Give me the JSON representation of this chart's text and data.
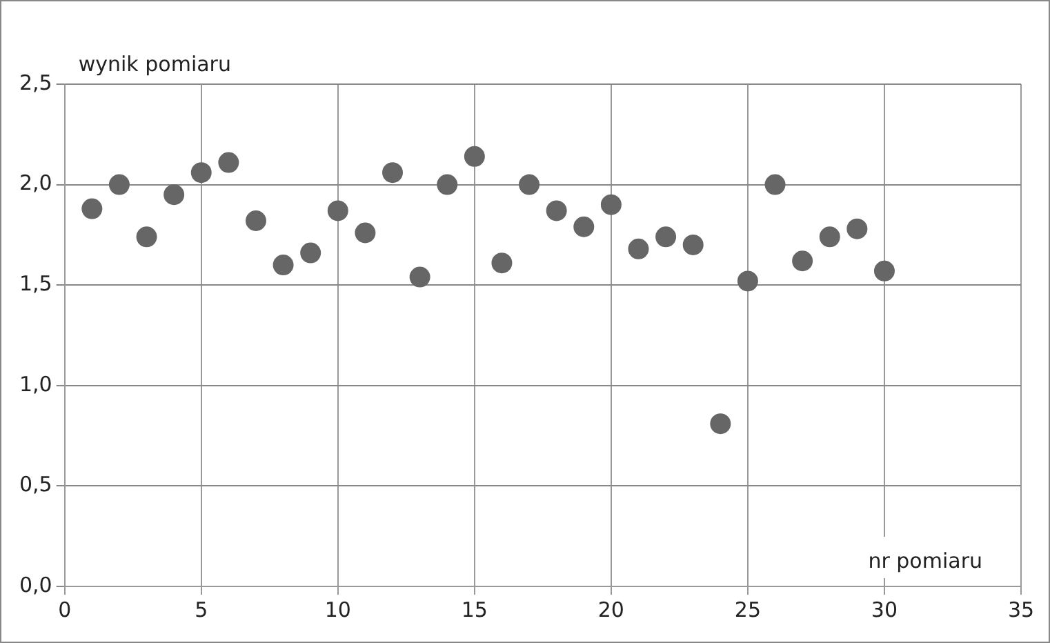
{
  "chart_data": {
    "type": "scatter",
    "xlabel": "nr pomiaru",
    "ylabel": "wynik pomiaru",
    "x": [
      1,
      2,
      3,
      4,
      5,
      6,
      7,
      8,
      9,
      10,
      11,
      12,
      13,
      14,
      15,
      16,
      17,
      18,
      19,
      20,
      21,
      22,
      23,
      24,
      25,
      26,
      27,
      28,
      29,
      30
    ],
    "series": [
      {
        "color": "#666666",
        "values": [
          1.88,
          2.0,
          1.74,
          1.95,
          2.06,
          2.11,
          1.82,
          1.6,
          1.66,
          1.87,
          1.76,
          2.06,
          1.54,
          2.0,
          2.14,
          1.61,
          2.0,
          1.87,
          1.79,
          1.9,
          1.68,
          1.74,
          1.7,
          0.81,
          1.52,
          2.0,
          1.62,
          1.74,
          1.78,
          1.57
        ]
      }
    ],
    "xlim": [
      0,
      35
    ],
    "xticks": [
      0,
      5,
      10,
      15,
      20,
      25,
      30,
      35
    ],
    "ylim": [
      0,
      2.5
    ],
    "yticks": [
      {
        "value": 0,
        "label": "0,0"
      },
      {
        "value": 0.5,
        "label": "0,5"
      },
      {
        "value": 1,
        "label": "1,0"
      },
      {
        "value": 1.5,
        "label": "1,5"
      },
      {
        "value": 2,
        "label": "2,0"
      },
      {
        "value": 2.5,
        "label": "2,5"
      }
    ],
    "grid": true,
    "marker": "circle",
    "legend": false
  }
}
